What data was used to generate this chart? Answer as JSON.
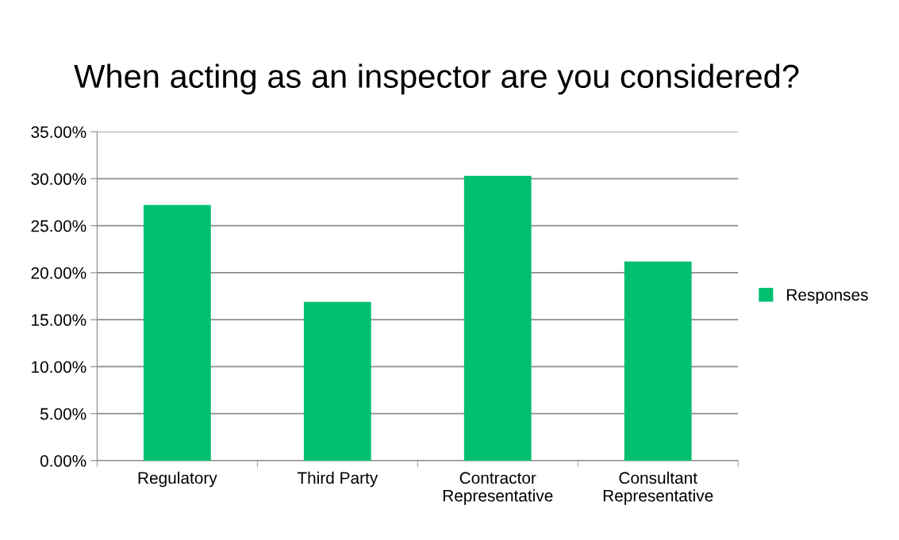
{
  "chart_data": {
    "type": "bar",
    "title": "When acting as an inspector are you considered?",
    "categories": [
      "Regulatory",
      "Third Party",
      "Contractor\nRepresentative",
      "Consultant\nRepresentative"
    ],
    "series": [
      {
        "name": "Responses",
        "color": "#00c070",
        "values": [
          27.2,
          16.9,
          30.3,
          21.2
        ]
      }
    ],
    "ylim": [
      0,
      35
    ],
    "yticks": [
      {
        "value": 0,
        "label": "0.00%"
      },
      {
        "value": 5,
        "label": "5.00%"
      },
      {
        "value": 10,
        "label": "10.00%"
      },
      {
        "value": 15,
        "label": "15.00%"
      },
      {
        "value": 20,
        "label": "20.00%"
      },
      {
        "value": 25,
        "label": "25.00%"
      },
      {
        "value": 30,
        "label": "30.00%"
      },
      {
        "value": 35,
        "label": "35.00%"
      }
    ],
    "grid": "y",
    "legend": "right"
  }
}
